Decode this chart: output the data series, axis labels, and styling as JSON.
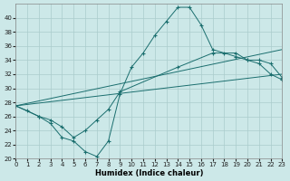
{
  "xlabel": "Humidex (Indice chaleur)",
  "xlim": [
    0,
    23
  ],
  "ylim": [
    20,
    42
  ],
  "yticks": [
    20,
    22,
    24,
    26,
    28,
    30,
    32,
    34,
    36,
    38,
    40
  ],
  "xticks": [
    0,
    1,
    2,
    3,
    4,
    5,
    6,
    7,
    8,
    9,
    10,
    11,
    12,
    13,
    14,
    15,
    16,
    17,
    18,
    19,
    20,
    21,
    22,
    23
  ],
  "background_color": "#cce8e8",
  "grid_color": "#aacccc",
  "line_color": "#1a6e6e",
  "curve1_x": [
    0,
    1,
    2,
    3,
    4,
    5,
    6,
    7,
    8,
    9,
    10,
    11,
    12,
    13,
    14,
    15,
    16,
    17,
    18,
    19,
    20,
    21,
    22,
    23
  ],
  "curve1_y": [
    27.5,
    26.8,
    26.0,
    25.0,
    23.0,
    22.5,
    21.0,
    20.3,
    22.5,
    29.2,
    33.0,
    35.0,
    37.5,
    39.5,
    41.5,
    41.5,
    39.0,
    35.5,
    35.0,
    34.5,
    34.0,
    33.5,
    32.0,
    31.2
  ],
  "curve2_x": [
    0,
    23
  ],
  "curve2_y": [
    27.5,
    35.5
  ],
  "curve3_x": [
    0,
    23
  ],
  "curve3_y": [
    27.5,
    32.0
  ],
  "curve4_x": [
    0,
    2,
    3,
    4,
    5,
    6,
    7,
    8,
    9,
    14,
    17,
    19,
    20,
    21,
    22,
    23
  ],
  "curve4_y": [
    27.5,
    26.0,
    25.5,
    24.5,
    23.0,
    24.0,
    25.5,
    27.0,
    29.5,
    33.0,
    35.0,
    35.0,
    34.0,
    34.0,
    33.5,
    31.5
  ]
}
